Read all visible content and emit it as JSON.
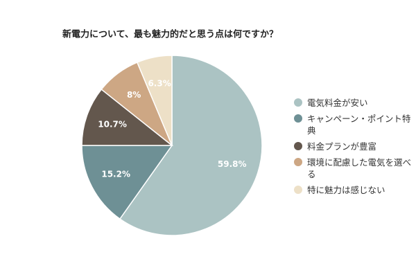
{
  "chart_data": {
    "type": "pie",
    "title": "新電力について、最も魅力的だと思う点は何ですか？",
    "categories": [
      "電気料金が安い",
      "キャンペーン・ポイント特典",
      "料金プランが豊富",
      "環境に配慮した電気を選べる",
      "特に魅力は感じない"
    ],
    "values": [
      59.8,
      15.2,
      10.7,
      8,
      6.3
    ],
    "value_labels": [
      "59.8%",
      "15.2%",
      "10.7%",
      "8%",
      "6.3%"
    ],
    "colors": [
      "#abc3c3",
      "#6e9095",
      "#63574d",
      "#cda784",
      "#ede0c7"
    ],
    "legend": "right"
  }
}
